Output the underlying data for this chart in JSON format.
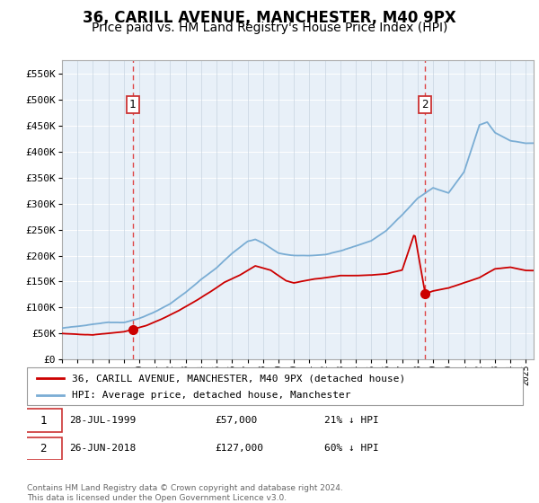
{
  "title": "36, CARILL AVENUE, MANCHESTER, M40 9PX",
  "subtitle": "Price paid vs. HM Land Registry's House Price Index (HPI)",
  "ylabel_ticks": [
    0,
    50000,
    100000,
    150000,
    200000,
    250000,
    300000,
    350000,
    400000,
    450000,
    500000,
    550000
  ],
  "ylim": [
    0,
    575000
  ],
  "xlim_start": 1995.0,
  "xlim_end": 2025.5,
  "purchase1_year": 1999.573,
  "purchase1_price": 57000,
  "purchase1_label": "1",
  "purchase2_year": 2018.49,
  "purchase2_price": 127000,
  "purchase2_label": "2",
  "line_color_property": "#cc0000",
  "line_color_hpi": "#7aadd4",
  "plot_background": "#e8f0f8",
  "grid_color": "#ffffff",
  "vline_color": "#dd3333",
  "legend_label_property": "36, CARILL AVENUE, MANCHESTER, M40 9PX (detached house)",
  "legend_label_hpi": "HPI: Average price, detached house, Manchester",
  "annotation1_date": "28-JUL-1999",
  "annotation1_price": "£57,000",
  "annotation1_hpi": "21% ↓ HPI",
  "annotation2_date": "26-JUN-2018",
  "annotation2_price": "£127,000",
  "annotation2_hpi": "60% ↓ HPI",
  "footer": "Contains HM Land Registry data © Crown copyright and database right 2024.\nThis data is licensed under the Open Government Licence v3.0.",
  "title_fontsize": 12,
  "subtitle_fontsize": 10,
  "tick_fontsize": 8,
  "hpi_knots_x": [
    1995.0,
    1996.0,
    1997.0,
    1998.0,
    1999.0,
    2000.0,
    2001.0,
    2002.0,
    2003.0,
    2004.0,
    2005.0,
    2006.0,
    2007.0,
    2007.5,
    2008.0,
    2009.0,
    2010.0,
    2011.0,
    2012.0,
    2013.0,
    2014.0,
    2015.0,
    2016.0,
    2017.0,
    2018.0,
    2019.0,
    2020.0,
    2021.0,
    2022.0,
    2022.5,
    2023.0,
    2024.0,
    2025.0
  ],
  "hpi_knots_y": [
    60000,
    63000,
    68000,
    72000,
    72000,
    80000,
    92000,
    108000,
    130000,
    155000,
    177000,
    205000,
    228000,
    232000,
    225000,
    205000,
    200000,
    200000,
    202000,
    208000,
    218000,
    228000,
    248000,
    278000,
    310000,
    330000,
    320000,
    360000,
    450000,
    455000,
    435000,
    420000,
    415000
  ],
  "prop_knots_x": [
    1995.0,
    1996.0,
    1997.0,
    1998.0,
    1999.0,
    1999.573,
    2000.5,
    2001.5,
    2002.5,
    2003.5,
    2004.5,
    2005.5,
    2006.5,
    2007.5,
    2008.5,
    2009.5,
    2010.0,
    2011.0,
    2012.0,
    2013.0,
    2014.0,
    2015.0,
    2016.0,
    2017.0,
    2017.8,
    2018.49,
    2019.0,
    2020.0,
    2021.0,
    2022.0,
    2023.0,
    2024.0,
    2025.0
  ],
  "prop_knots_y": [
    50000,
    48000,
    47000,
    50000,
    53000,
    57000,
    65000,
    78000,
    93000,
    110000,
    128000,
    148000,
    162000,
    180000,
    172000,
    152000,
    148000,
    154000,
    158000,
    162000,
    162000,
    163000,
    165000,
    172000,
    243000,
    127000,
    132000,
    138000,
    148000,
    158000,
    175000,
    178000,
    172000
  ]
}
